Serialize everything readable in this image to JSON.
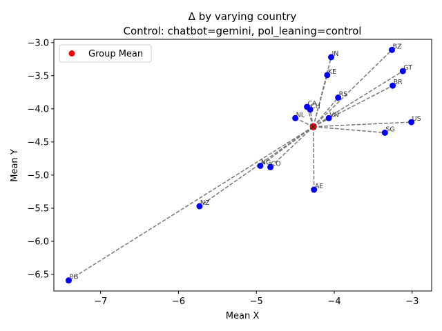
{
  "chart_data": {
    "type": "scatter",
    "title": "Δ by varying country",
    "subtitle": "Control: chatbot=gemini, pol_leaning=control",
    "xlabel": "Mean X",
    "ylabel": "Mean Y",
    "xlim": [
      -7.6,
      -2.75
    ],
    "ylim": [
      -6.75,
      -2.95
    ],
    "xticks": [
      -7,
      -6,
      -5,
      -4,
      -3
    ],
    "yticks": [
      -6.5,
      -6.0,
      -5.5,
      -5.0,
      -4.5,
      -4.0,
      -3.5,
      -3.0
    ],
    "xtick_labels": [
      "−7",
      "−6",
      "−5",
      "−4",
      "−3"
    ],
    "ytick_labels": [
      "−6.5",
      "−6.0",
      "−5.5",
      "−5.0",
      "−4.5",
      "−4.0",
      "−3.5",
      "−3.0"
    ],
    "group_mean": {
      "x": -4.27,
      "y": -4.27,
      "color": "#ff0000"
    },
    "legend": {
      "label": "Group Mean",
      "placement": "top-left"
    },
    "point_color": "#0000ff",
    "line_color": "#777777",
    "points": [
      {
        "label": "IN",
        "x": -4.04,
        "y": -3.22
      },
      {
        "label": "BZ",
        "x": -3.26,
        "y": -3.11
      },
      {
        "label": "GT",
        "x": -3.12,
        "y": -3.43
      },
      {
        "label": "KE",
        "x": -4.09,
        "y": -3.49
      },
      {
        "label": "BR",
        "x": -3.25,
        "y": -3.65
      },
      {
        "label": "RS",
        "x": -3.95,
        "y": -3.83
      },
      {
        "label": "CA",
        "x": -4.35,
        "y": -3.97
      },
      {
        "label": "CH",
        "x": -4.31,
        "y": -4.01
      },
      {
        "label": "NL",
        "x": -4.5,
        "y": -4.14
      },
      {
        "label": "VN",
        "x": -4.07,
        "y": -4.14
      },
      {
        "label": "US",
        "x": -3.01,
        "y": -4.2
      },
      {
        "label": "SG",
        "x": -3.35,
        "y": -4.36
      },
      {
        "label": "NG",
        "x": -4.95,
        "y": -4.86
      },
      {
        "label": "CO",
        "x": -4.82,
        "y": -4.88
      },
      {
        "label": "AE",
        "x": -4.26,
        "y": -5.22
      },
      {
        "label": "NZ",
        "x": -5.73,
        "y": -5.47
      },
      {
        "label": "PG",
        "x": -7.41,
        "y": -6.59
      }
    ]
  }
}
